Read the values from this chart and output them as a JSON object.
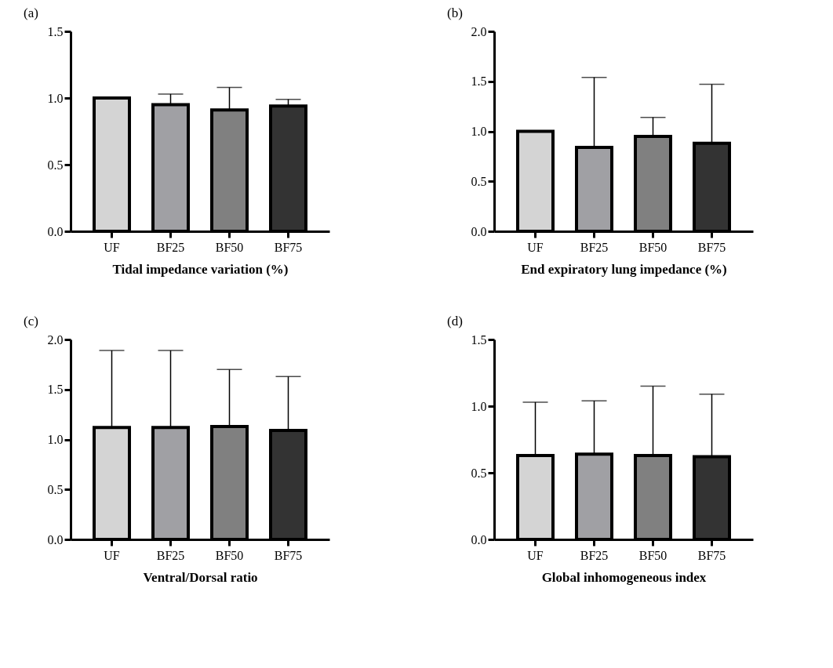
{
  "chart_data": [
    {
      "type": "bar",
      "title": "(a)",
      "xlabel": "Tidal impedance variation (%)",
      "categories": [
        "UF",
        "BF25",
        "BF50",
        "BF75"
      ],
      "values": [
        1.0,
        0.95,
        0.91,
        0.94
      ],
      "colors": [
        "#d4d4d4",
        "#a0a0a4",
        "#808080",
        "#333333"
      ],
      "errors": [
        null,
        [
          0.95,
          1.03
        ],
        [
          0.91,
          1.08
        ],
        [
          0.94,
          0.99
        ]
      ],
      "ylim": [
        0,
        1.5
      ],
      "yticks": [
        {
          "value": 0,
          "label": "0.0"
        },
        {
          "value": 0.5,
          "label": "0.5"
        },
        {
          "value": 1,
          "label": "1.0"
        },
        {
          "value": 1.5,
          "label": "1.5"
        }
      ],
      "grid": false,
      "legend": false
    },
    {
      "type": "bar",
      "title": "(b)",
      "xlabel": "End expiratory lung impedance (%)",
      "categories": [
        "UF",
        "BF25",
        "BF50",
        "BF75"
      ],
      "values": [
        1.0,
        0.84,
        0.95,
        0.88
      ],
      "colors": [
        "#d4d4d4",
        "#a0a0a4",
        "#808080",
        "#333333"
      ],
      "errors": [
        null,
        [
          0.84,
          1.54
        ],
        [
          0.95,
          1.14
        ],
        [
          0.88,
          1.47
        ]
      ],
      "ylim": [
        0,
        2
      ],
      "yticks": [
        {
          "value": 0,
          "label": "0.0"
        },
        {
          "value": 0.5,
          "label": "0.5"
        },
        {
          "value": 1,
          "label": "1.0"
        },
        {
          "value": 1.5,
          "label": "1.5"
        },
        {
          "value": 2,
          "label": "2.0"
        }
      ],
      "grid": false,
      "legend": false
    },
    {
      "type": "bar",
      "title": "(c)",
      "xlabel": "Ventral/Dorsal ratio",
      "categories": [
        "UF",
        "BF25",
        "BF50",
        "BF75"
      ],
      "values": [
        1.12,
        1.12,
        1.13,
        1.09
      ],
      "colors": [
        "#d4d4d4",
        "#a0a0a4",
        "#808080",
        "#333333"
      ],
      "errors": [
        [
          1.12,
          1.89
        ],
        [
          1.12,
          1.89
        ],
        [
          1.13,
          1.7
        ],
        [
          1.09,
          1.63
        ]
      ],
      "ylim": [
        0,
        2
      ],
      "yticks": [
        {
          "value": 0,
          "label": "0.0"
        },
        {
          "value": 0.5,
          "label": "0.5"
        },
        {
          "value": 1,
          "label": "1.0"
        },
        {
          "value": 1.5,
          "label": "1.5"
        },
        {
          "value": 2,
          "label": "2.0"
        }
      ],
      "grid": false,
      "legend": false
    },
    {
      "type": "bar",
      "title": "(d)",
      "xlabel": "Global inhomogeneous index",
      "categories": [
        "UF",
        "BF25",
        "BF50",
        "BF75"
      ],
      "values": [
        0.63,
        0.64,
        0.63,
        0.62
      ],
      "colors": [
        "#d4d4d4",
        "#a0a0a4",
        "#808080",
        "#333333"
      ],
      "errors": [
        [
          0.63,
          1.03
        ],
        [
          0.64,
          1.04
        ],
        [
          0.63,
          1.15
        ],
        [
          0.62,
          1.09
        ]
      ],
      "ylim": [
        0,
        1.5
      ],
      "yticks": [
        {
          "value": 0,
          "label": "0.0"
        },
        {
          "value": 0.5,
          "label": "0.5"
        },
        {
          "value": 1,
          "label": "1.0"
        },
        {
          "value": 1.5,
          "label": "1.5"
        }
      ],
      "grid": false,
      "legend": false
    }
  ]
}
